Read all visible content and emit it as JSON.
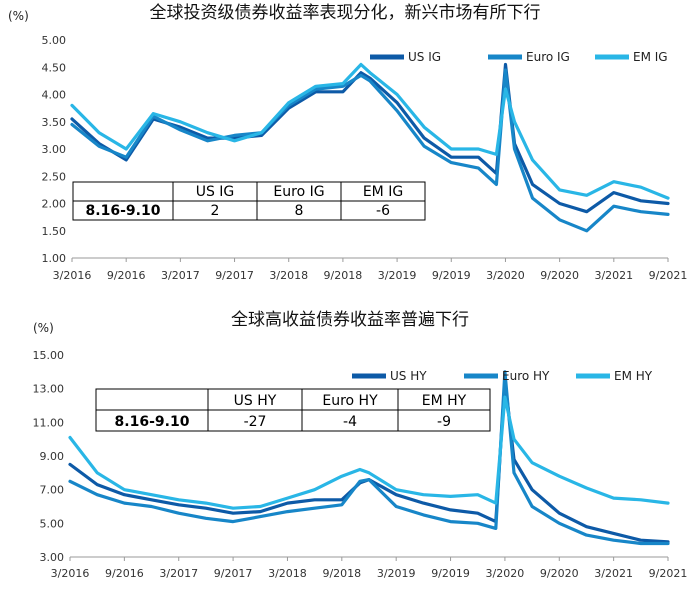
{
  "colors": {
    "us": "#0d5aa7",
    "euro": "#1786c8",
    "em": "#29b6e6",
    "axis": "#9a9a9a",
    "text": "#222222"
  },
  "chart_data": [
    {
      "type": "line",
      "title": "全球投资级债券收益率表现分化，新兴市场有所下行",
      "unit": "(%)",
      "ylim": [
        1.0,
        5.0
      ],
      "yticks": [
        "5.00",
        "4.50",
        "4.00",
        "3.50",
        "3.00",
        "2.50",
        "2.00",
        "1.50",
        "1.00"
      ],
      "x_ticks": [
        "3/2016",
        "9/2016",
        "3/2017",
        "9/2017",
        "3/2018",
        "9/2018",
        "3/2019",
        "9/2019",
        "3/2020",
        "9/2020",
        "3/2021",
        "9/2021"
      ],
      "legend_position": "top-right",
      "x": [
        "3/2016",
        "6/2016",
        "9/2016",
        "12/2016",
        "3/2017",
        "6/2017",
        "9/2017",
        "12/2017",
        "3/2018",
        "6/2018",
        "9/2018",
        "11/2018",
        "12/2018",
        "3/2019",
        "6/2019",
        "9/2019",
        "12/2019",
        "2/2020",
        "3/2020",
        "4/2020",
        "6/2020",
        "9/2020",
        "12/2020",
        "3/2021",
        "6/2021",
        "9/2021"
      ],
      "series": [
        {
          "name": "US IG",
          "color": "#0d5aa7",
          "values": [
            3.55,
            3.1,
            2.8,
            3.55,
            3.4,
            3.2,
            3.2,
            3.25,
            3.75,
            4.05,
            4.05,
            4.4,
            4.3,
            3.85,
            3.2,
            2.85,
            2.85,
            2.55,
            4.55,
            3.1,
            2.35,
            2.0,
            1.85,
            2.2,
            2.05,
            2.0
          ]
        },
        {
          "name": "Euro IG",
          "color": "#1786c8",
          "values": [
            3.45,
            3.05,
            2.85,
            3.6,
            3.35,
            3.15,
            3.25,
            3.3,
            3.8,
            4.1,
            4.15,
            4.35,
            4.25,
            3.7,
            3.05,
            2.75,
            2.65,
            2.35,
            4.45,
            3.0,
            2.1,
            1.7,
            1.5,
            1.95,
            1.85,
            1.8
          ]
        },
        {
          "name": "EM IG",
          "color": "#29b6e6",
          "values": [
            3.8,
            3.3,
            3.0,
            3.65,
            3.5,
            3.3,
            3.15,
            3.3,
            3.85,
            4.15,
            4.2,
            4.55,
            4.4,
            4.0,
            3.4,
            3.0,
            3.0,
            2.9,
            4.1,
            3.5,
            2.8,
            2.25,
            2.15,
            2.4,
            2.3,
            2.1
          ]
        }
      ],
      "table": {
        "row_label": "8.16-9.10",
        "headers": [
          "US IG",
          "Euro IG",
          "EM IG"
        ],
        "values": [
          "2",
          "8",
          "-6"
        ]
      }
    },
    {
      "type": "line",
      "title": "全球高收益债券收益率普遍下行",
      "unit": "(%)",
      "ylim": [
        3.0,
        15.0
      ],
      "yticks": [
        "15.00",
        "13.00",
        "11.00",
        "9.00",
        "7.00",
        "5.00",
        "3.00"
      ],
      "x_ticks": [
        "3/2016",
        "9/2016",
        "3/2017",
        "9/2017",
        "3/2018",
        "9/2018",
        "3/2019",
        "9/2019",
        "3/2020",
        "9/2020",
        "3/2021",
        "9/2021"
      ],
      "legend_position": "top-right",
      "x": [
        "3/2016",
        "6/2016",
        "9/2016",
        "12/2016",
        "3/2017",
        "6/2017",
        "9/2017",
        "12/2017",
        "3/2018",
        "6/2018",
        "9/2018",
        "11/2018",
        "12/2018",
        "3/2019",
        "6/2019",
        "9/2019",
        "12/2019",
        "2/2020",
        "3/2020",
        "4/2020",
        "6/2020",
        "9/2020",
        "12/2020",
        "3/2021",
        "6/2021",
        "9/2021"
      ],
      "series": [
        {
          "name": "US HY",
          "color": "#0d5aa7",
          "values": [
            8.5,
            7.3,
            6.7,
            6.4,
            6.1,
            5.9,
            5.6,
            5.7,
            6.2,
            6.4,
            6.4,
            7.4,
            7.6,
            6.7,
            6.2,
            5.8,
            5.6,
            5.1,
            13.5,
            8.8,
            7.0,
            5.6,
            4.8,
            4.4,
            4.0,
            3.9
          ]
        },
        {
          "name": "Euro HY",
          "color": "#1786c8",
          "values": [
            7.5,
            6.7,
            6.2,
            6.0,
            5.6,
            5.3,
            5.1,
            5.4,
            5.7,
            5.9,
            6.1,
            7.5,
            7.6,
            6.0,
            5.5,
            5.1,
            5.0,
            4.7,
            14.0,
            8.0,
            6.0,
            5.0,
            4.3,
            4.0,
            3.8,
            3.8
          ]
        },
        {
          "name": "EM HY",
          "color": "#29b6e6",
          "values": [
            10.1,
            8.0,
            7.0,
            6.7,
            6.4,
            6.2,
            5.9,
            6.0,
            6.5,
            7.0,
            7.8,
            8.2,
            8.0,
            7.0,
            6.7,
            6.6,
            6.7,
            6.2,
            12.5,
            10.0,
            8.6,
            7.8,
            7.1,
            6.5,
            6.4,
            6.2
          ]
        }
      ],
      "table": {
        "row_label": "8.16-9.10",
        "headers": [
          "US HY",
          "Euro HY",
          "EM HY"
        ],
        "values": [
          "-27",
          "-4",
          "-9"
        ]
      }
    }
  ]
}
